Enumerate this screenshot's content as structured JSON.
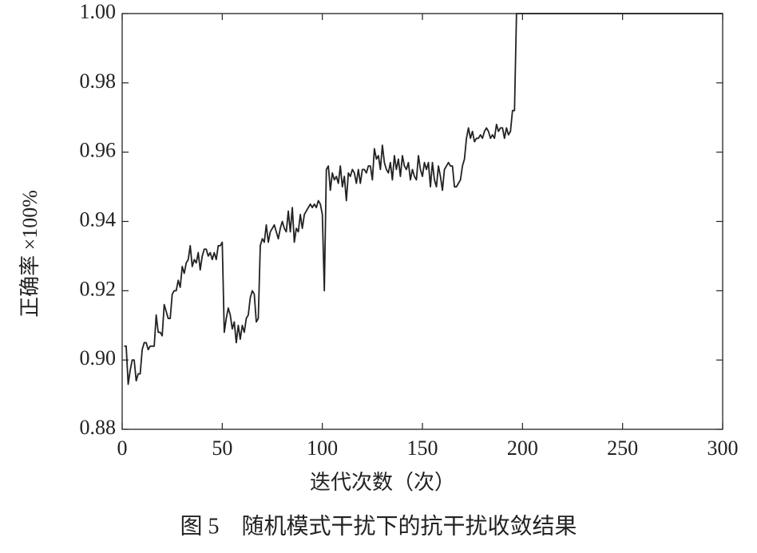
{
  "chart_data": {
    "type": "line",
    "caption": "图 5　随机模式干扰下的抗干扰收敛结果",
    "xlabel": "迭代次数（次）",
    "ylabel": "正确率 ×100%",
    "xlim": [
      0,
      300
    ],
    "xticks": [
      0,
      50,
      100,
      150,
      200,
      250,
      300
    ],
    "ylim": [
      0.88,
      1.0
    ],
    "yticks": [
      {
        "value": 0.88,
        "label": "0.88"
      },
      {
        "value": 0.9,
        "label": "0.90"
      },
      {
        "value": 0.92,
        "label": "0.92"
      },
      {
        "value": 0.94,
        "label": "0.94"
      },
      {
        "value": 0.96,
        "label": "0.96"
      },
      {
        "value": 0.98,
        "label": "0.98"
      },
      {
        "value": 1.0,
        "label": "1.00"
      }
    ],
    "color": "#222222",
    "x": [
      1,
      2,
      3,
      4,
      5,
      6,
      7,
      8,
      9,
      10,
      11,
      12,
      13,
      14,
      15,
      16,
      17,
      18,
      19,
      20,
      21,
      22,
      23,
      24,
      25,
      26,
      27,
      28,
      29,
      30,
      31,
      32,
      33,
      34,
      35,
      36,
      37,
      38,
      39,
      40,
      41,
      42,
      43,
      44,
      45,
      46,
      47,
      48,
      49,
      50,
      51,
      52,
      53,
      54,
      55,
      56,
      57,
      58,
      59,
      60,
      61,
      62,
      63,
      64,
      65,
      66,
      67,
      68,
      69,
      70,
      71,
      72,
      73,
      74,
      75,
      76,
      77,
      78,
      79,
      80,
      81,
      82,
      83,
      84,
      85,
      86,
      87,
      88,
      89,
      90,
      91,
      92,
      93,
      94,
      95,
      96,
      97,
      98,
      99,
      100,
      101,
      102,
      103,
      104,
      105,
      106,
      107,
      108,
      109,
      110,
      111,
      112,
      113,
      114,
      115,
      116,
      117,
      118,
      119,
      120,
      121,
      122,
      123,
      124,
      125,
      126,
      127,
      128,
      129,
      130,
      131,
      132,
      133,
      134,
      135,
      136,
      137,
      138,
      139,
      140,
      141,
      142,
      143,
      144,
      145,
      146,
      147,
      148,
      149,
      150,
      151,
      152,
      153,
      154,
      155,
      156,
      157,
      158,
      159,
      160,
      161,
      162,
      163,
      164,
      165,
      166,
      167,
      168,
      169,
      170,
      171,
      172,
      173,
      174,
      175,
      176,
      177,
      178,
      179,
      180,
      181,
      182,
      183,
      184,
      185,
      186,
      187,
      188,
      189,
      190,
      191,
      192,
      193,
      194,
      195,
      196,
      197,
      300
    ],
    "values": [
      0.904,
      0.904,
      0.893,
      0.897,
      0.9,
      0.9,
      0.894,
      0.896,
      0.896,
      0.903,
      0.905,
      0.905,
      0.903,
      0.904,
      0.904,
      0.904,
      0.913,
      0.908,
      0.908,
      0.907,
      0.916,
      0.914,
      0.912,
      0.912,
      0.919,
      0.92,
      0.92,
      0.923,
      0.921,
      0.927,
      0.925,
      0.928,
      0.929,
      0.933,
      0.927,
      0.929,
      0.928,
      0.931,
      0.926,
      0.93,
      0.932,
      0.932,
      0.93,
      0.931,
      0.929,
      0.931,
      0.929,
      0.933,
      0.933,
      0.934,
      0.908,
      0.912,
      0.915,
      0.913,
      0.909,
      0.911,
      0.905,
      0.91,
      0.906,
      0.91,
      0.908,
      0.912,
      0.913,
      0.918,
      0.92,
      0.919,
      0.911,
      0.912,
      0.933,
      0.935,
      0.934,
      0.939,
      0.934,
      0.937,
      0.938,
      0.939,
      0.937,
      0.935,
      0.938,
      0.94,
      0.938,
      0.937,
      0.943,
      0.937,
      0.944,
      0.934,
      0.938,
      0.937,
      0.942,
      0.938,
      0.942,
      0.943,
      0.944,
      0.945,
      0.944,
      0.945,
      0.944,
      0.946,
      0.945,
      0.942,
      0.92,
      0.955,
      0.956,
      0.949,
      0.954,
      0.952,
      0.953,
      0.951,
      0.956,
      0.95,
      0.953,
      0.946,
      0.954,
      0.953,
      0.955,
      0.954,
      0.951,
      0.955,
      0.951,
      0.955,
      0.955,
      0.954,
      0.956,
      0.956,
      0.952,
      0.961,
      0.958,
      0.959,
      0.955,
      0.962,
      0.957,
      0.955,
      0.954,
      0.957,
      0.952,
      0.959,
      0.955,
      0.958,
      0.953,
      0.959,
      0.956,
      0.955,
      0.957,
      0.952,
      0.955,
      0.953,
      0.952,
      0.959,
      0.955,
      0.953,
      0.957,
      0.955,
      0.957,
      0.95,
      0.957,
      0.952,
      0.95,
      0.956,
      0.953,
      0.949,
      0.955,
      0.956,
      0.957,
      0.956,
      0.956,
      0.95,
      0.95,
      0.951,
      0.952,
      0.956,
      0.958,
      0.964,
      0.967,
      0.964,
      0.966,
      0.963,
      0.964,
      0.964,
      0.965,
      0.964,
      0.966,
      0.967,
      0.966,
      0.964,
      0.965,
      0.964,
      0.968,
      0.966,
      0.967,
      0.967,
      0.964,
      0.967,
      0.965,
      0.966,
      0.972,
      0.972,
      1.0,
      1.0
    ]
  }
}
